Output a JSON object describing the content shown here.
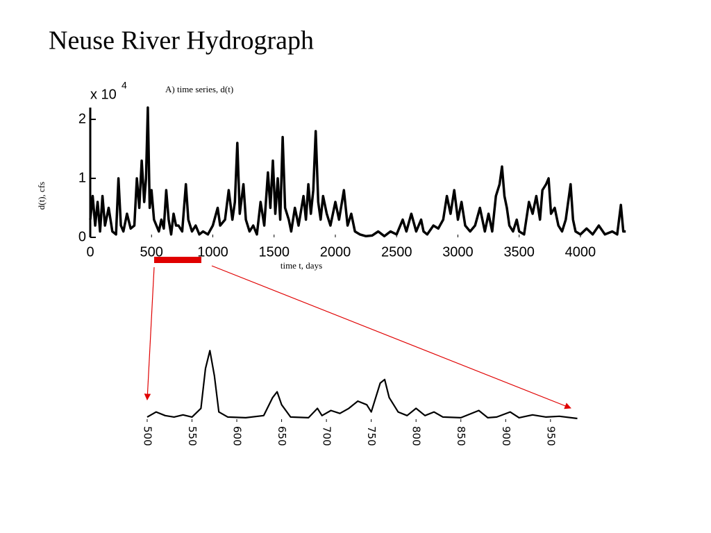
{
  "title": "Neuse River Hydrograph",
  "chart_data": [
    {
      "type": "line",
      "title": "A) time series, d(t)",
      "x_label": "time t, days",
      "y_label": "d(t), cfs",
      "y_scale_label": "x 10",
      "y_scale_exponent": "4",
      "color": "#000000",
      "xlim": [
        0,
        4380
      ],
      "ylim": [
        0,
        2.2
      ],
      "xticks": [
        0,
        500,
        1000,
        1500,
        2000,
        2500,
        3000,
        3500,
        4000
      ],
      "yticks": [
        0,
        1,
        2
      ],
      "x": [
        0,
        20,
        40,
        60,
        80,
        100,
        120,
        150,
        180,
        210,
        230,
        250,
        270,
        300,
        330,
        360,
        380,
        400,
        420,
        440,
        455,
        470,
        485,
        500,
        520,
        540,
        560,
        580,
        600,
        620,
        640,
        660,
        680,
        700,
        720,
        750,
        780,
        800,
        830,
        860,
        890,
        920,
        960,
        1000,
        1040,
        1060,
        1100,
        1130,
        1160,
        1180,
        1200,
        1220,
        1250,
        1270,
        1300,
        1330,
        1360,
        1390,
        1420,
        1450,
        1470,
        1490,
        1510,
        1530,
        1550,
        1570,
        1590,
        1620,
        1640,
        1670,
        1700,
        1740,
        1760,
        1780,
        1800,
        1820,
        1840,
        1860,
        1880,
        1900,
        1930,
        1960,
        2000,
        2030,
        2070,
        2100,
        2130,
        2160,
        2200,
        2250,
        2300,
        2350,
        2400,
        2450,
        2500,
        2550,
        2580,
        2620,
        2660,
        2700,
        2720,
        2750,
        2800,
        2840,
        2880,
        2910,
        2940,
        2970,
        3000,
        3030,
        3060,
        3100,
        3140,
        3180,
        3220,
        3250,
        3280,
        3310,
        3340,
        3360,
        3380,
        3400,
        3420,
        3450,
        3480,
        3500,
        3540,
        3580,
        3610,
        3640,
        3670,
        3690,
        3720,
        3740,
        3760,
        3790,
        3820,
        3850,
        3880,
        3920,
        3940,
        3960,
        4000,
        4050,
        4100,
        4150,
        4200,
        4260,
        4300,
        4330,
        4350,
        4370
      ],
      "values": [
        0.3,
        0.7,
        0.2,
        0.6,
        0.1,
        0.7,
        0.2,
        0.5,
        0.1,
        0.05,
        1.0,
        0.2,
        0.1,
        0.4,
        0.15,
        0.2,
        1.0,
        0.5,
        1.3,
        0.6,
        1.0,
        2.2,
        0.5,
        0.8,
        0.3,
        0.2,
        0.1,
        0.3,
        0.15,
        0.8,
        0.3,
        0.05,
        0.4,
        0.2,
        0.2,
        0.1,
        0.9,
        0.3,
        0.1,
        0.2,
        0.05,
        0.1,
        0.05,
        0.2,
        0.5,
        0.2,
        0.3,
        0.8,
        0.3,
        0.6,
        1.6,
        0.4,
        0.9,
        0.3,
        0.1,
        0.2,
        0.05,
        0.6,
        0.2,
        1.1,
        0.5,
        1.3,
        0.4,
        1.0,
        0.3,
        1.7,
        0.5,
        0.3,
        0.1,
        0.5,
        0.2,
        0.7,
        0.3,
        0.9,
        0.4,
        0.8,
        1.8,
        0.6,
        0.3,
        0.7,
        0.4,
        0.2,
        0.6,
        0.3,
        0.8,
        0.2,
        0.4,
        0.1,
        0.05,
        0.02,
        0.03,
        0.1,
        0.02,
        0.1,
        0.05,
        0.3,
        0.1,
        0.4,
        0.1,
        0.3,
        0.1,
        0.05,
        0.2,
        0.15,
        0.3,
        0.7,
        0.4,
        0.8,
        0.3,
        0.6,
        0.2,
        0.1,
        0.2,
        0.5,
        0.1,
        0.4,
        0.1,
        0.7,
        0.9,
        1.2,
        0.7,
        0.5,
        0.2,
        0.1,
        0.3,
        0.1,
        0.05,
        0.6,
        0.4,
        0.7,
        0.3,
        0.8,
        0.9,
        1.0,
        0.4,
        0.5,
        0.2,
        0.1,
        0.3,
        0.9,
        0.3,
        0.1,
        0.05,
        0.15,
        0.05,
        0.2,
        0.05,
        0.1,
        0.05,
        0.55,
        0.1,
        0.1
      ]
    },
    {
      "type": "line",
      "color": "#000000",
      "xlim": [
        495,
        985
      ],
      "ylim": [
        0,
        1
      ],
      "xticks": [
        500,
        550,
        600,
        650,
        700,
        750,
        800,
        850,
        900,
        950
      ],
      "x": [
        500,
        510,
        520,
        530,
        540,
        550,
        560,
        565,
        570,
        575,
        580,
        590,
        610,
        630,
        640,
        645,
        650,
        660,
        680,
        690,
        695,
        705,
        715,
        725,
        735,
        745,
        750,
        760,
        765,
        770,
        780,
        790,
        800,
        810,
        820,
        830,
        850,
        870,
        880,
        890,
        905,
        915,
        930,
        945,
        960,
        980
      ],
      "values": [
        0.03,
        0.1,
        0.05,
        0.03,
        0.06,
        0.03,
        0.15,
        0.7,
        0.95,
        0.6,
        0.1,
        0.03,
        0.02,
        0.05,
        0.3,
        0.38,
        0.2,
        0.03,
        0.02,
        0.15,
        0.05,
        0.12,
        0.08,
        0.15,
        0.25,
        0.2,
        0.1,
        0.5,
        0.55,
        0.3,
        0.1,
        0.05,
        0.15,
        0.05,
        0.1,
        0.03,
        0.02,
        0.12,
        0.02,
        0.03,
        0.1,
        0.02,
        0.06,
        0.03,
        0.04,
        0.01
      ]
    }
  ]
}
